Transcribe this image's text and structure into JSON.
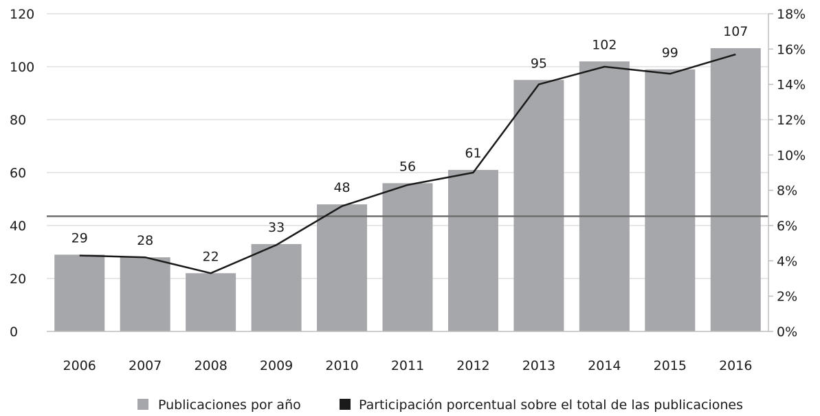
{
  "chart_data": {
    "type": "bar",
    "categories": [
      "2006",
      "2007",
      "2008",
      "2009",
      "2010",
      "2011",
      "2012",
      "2013",
      "2014",
      "2015",
      "2016"
    ],
    "series": [
      {
        "name": "Publicaciones por año",
        "type": "bar",
        "axis": "left",
        "color": "#a6a7aa",
        "values": [
          29,
          28,
          22,
          33,
          48,
          56,
          61,
          95,
          102,
          99,
          107
        ]
      },
      {
        "name": "Participación porcentual sobre el total de las publicaciones",
        "type": "line",
        "axis": "right",
        "color": "#1a1a1a",
        "values": [
          4.3,
          4.2,
          3.3,
          4.9,
          7.1,
          8.3,
          9.0,
          14.0,
          15.0,
          14.6,
          15.7
        ]
      }
    ],
    "data_labels": [
      "29",
      "28",
      "22",
      "33",
      "48",
      "56",
      "61",
      "95",
      "102",
      "99",
      "107"
    ],
    "y_left": {
      "min": 0,
      "max": 120,
      "ticks": [
        "0",
        "20",
        "40",
        "60",
        "80",
        "100",
        "120"
      ]
    },
    "y_right": {
      "min": 0,
      "max": 18,
      "ticks": [
        "0%",
        "2%",
        "4%",
        "6%",
        "8%",
        "10%",
        "12%",
        "14%",
        "16%",
        "18%"
      ]
    },
    "reference_line": {
      "axis": "left",
      "value": 43.5,
      "color": "#6e6e6e"
    },
    "grid": true,
    "gridline_color": "#cfcfcf",
    "legend_position": "bottom-center",
    "title": "",
    "xlabel": "",
    "ylabel": ""
  }
}
